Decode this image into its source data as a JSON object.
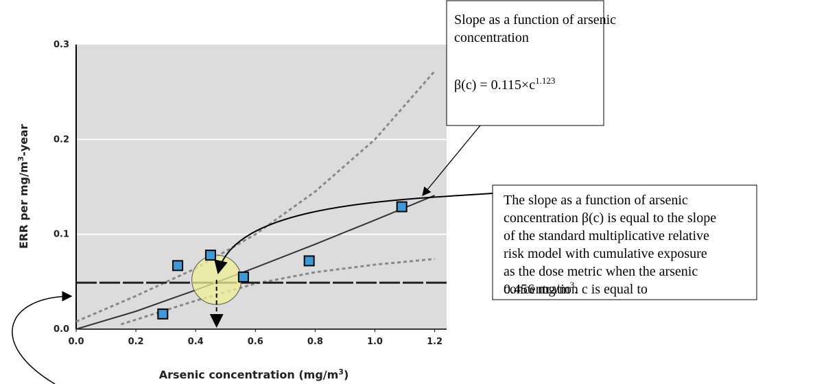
{
  "chart_data": {
    "type": "scatter",
    "x_label": [
      "Arsenic concentration (mg/m",
      "3",
      ")"
    ],
    "y_label": [
      "ERR per mg/m",
      "3",
      "-year"
    ],
    "x": [
      0.29,
      0.34,
      0.45,
      0.56,
      0.78,
      1.09
    ],
    "values": [
      0.016,
      0.067,
      0.078,
      0.055,
      0.072,
      0.129
    ],
    "color": "#3b9ad9",
    "xlim": [
      0,
      1.24
    ],
    "ylim": [
      0,
      0.3
    ],
    "xticks": [
      {
        "value": 0,
        "label": "0.0"
      },
      0.2,
      0.4,
      0.6,
      0.8,
      {
        "value": 1,
        "label": "1.0"
      },
      1.2
    ],
    "yticks": [
      {
        "value": 0,
        "label": "0.0"
      },
      0.1,
      0.2,
      0.3
    ],
    "grid": true,
    "lines": [
      {
        "style": "solid",
        "color": "#333333",
        "x": [
          0,
          0.2,
          0.4,
          0.6,
          0.8,
          1,
          1.2
        ],
        "values": [
          0,
          0.0188,
          0.0412,
          0.0649,
          0.0895,
          0.115,
          0.141
        ]
      },
      {
        "style": "dashed",
        "color": "#888888",
        "x": [
          0,
          0.2,
          0.4,
          0.6,
          0.8,
          1,
          1.2
        ],
        "values": [
          0.008,
          0.035,
          0.064,
          0.1,
          0.145,
          0.2,
          0.272
        ]
      },
      {
        "style": "dashed",
        "color": "#888888",
        "x": [
          0.15,
          0.4,
          0.6,
          0.8,
          1,
          1.2
        ],
        "values": [
          0.005,
          0.03,
          0.048,
          0.06,
          0.068,
          0.074
        ]
      }
    ],
    "reference_y": 0.049,
    "marker": [
      0.47,
      0.052
    ]
  },
  "annotations": {
    "box1": {
      "lines": [
        "Slope as a function of arsenic",
        "concentration"
      ],
      "formula": [
        "β(c) = 0.115×c",
        "1.123"
      ]
    },
    "box2": {
      "lines": [
        "The slope as a function of arsenic",
        "concentration β(c) is equal to the slope",
        "of the standard multiplicative relative",
        "risk model with cumulative exposure",
        "as the dose metric when the arsenic",
        "concentration c is equal to"
      ],
      "last": [
        "0.456 mg/m",
        "3",
        "."
      ]
    }
  }
}
